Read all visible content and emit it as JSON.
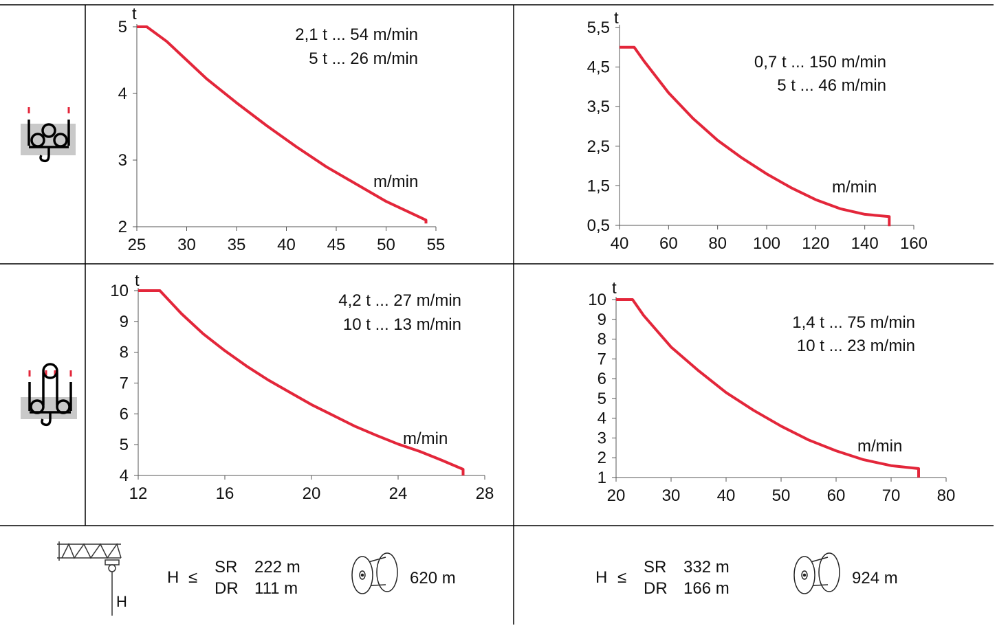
{
  "colors": {
    "curve": "#e3263a",
    "axis": "#555555",
    "line": "#000000",
    "icon_bg": "#c9c9c9"
  },
  "row_icons": [
    {
      "name": "single-reeving-hook-icon"
    },
    {
      "name": "double-reeving-hook-icon"
    }
  ],
  "chart_data": [
    {
      "type": "line",
      "ylabel": "t",
      "xlabel": "m/min",
      "xlim": [
        25,
        55
      ],
      "ylim": [
        2,
        5
      ],
      "x_ticks": [
        "25",
        "30",
        "35",
        "40",
        "45",
        "50",
        "55"
      ],
      "y_ticks": [
        "2",
        "3",
        "4",
        "5"
      ],
      "annotations": [
        "2,1 t ... 54 m/min",
        "5 t ... 26 m/min"
      ],
      "series": [
        {
          "x": [
            25,
            26,
            28,
            30,
            32,
            35,
            38,
            41,
            44,
            47,
            50,
            52,
            54,
            54
          ],
          "y": [
            5.0,
            5.0,
            4.78,
            4.5,
            4.22,
            3.86,
            3.52,
            3.2,
            2.9,
            2.64,
            2.38,
            2.24,
            2.1,
            2.05
          ]
        }
      ]
    },
    {
      "type": "line",
      "ylabel": "t",
      "xlabel": "m/min",
      "xlim": [
        40,
        160
      ],
      "ylim": [
        0.5,
        5.5
      ],
      "x_ticks": [
        "40",
        "60",
        "80",
        "100",
        "120",
        "140",
        "160"
      ],
      "y_ticks": [
        "0,5",
        "1,5",
        "2,5",
        "3,5",
        "4,5",
        "5,5"
      ],
      "annotations": [
        "0,7 t ... 150 m/min",
        "5 t ...   46 m/min"
      ],
      "series": [
        {
          "x": [
            40,
            46,
            50,
            60,
            70,
            80,
            90,
            100,
            110,
            120,
            130,
            140,
            150,
            150
          ],
          "y": [
            5.0,
            5.0,
            4.65,
            3.85,
            3.2,
            2.65,
            2.2,
            1.8,
            1.45,
            1.15,
            0.92,
            0.78,
            0.72,
            0.48
          ]
        }
      ]
    },
    {
      "type": "line",
      "ylabel": "t",
      "xlabel": "m/min",
      "xlim": [
        12,
        28
      ],
      "ylim": [
        4,
        10
      ],
      "x_ticks": [
        "12",
        "16",
        "20",
        "24",
        "28"
      ],
      "y_ticks": [
        "4",
        "5",
        "6",
        "7",
        "8",
        "9",
        "10"
      ],
      "annotations": [
        "4,2 t ... 27 m/min",
        "10 t ... 13 m/min"
      ],
      "series": [
        {
          "x": [
            12,
            13,
            14,
            15,
            16,
            17,
            18,
            19,
            20,
            21,
            22,
            23,
            24,
            25,
            26,
            27,
            27
          ],
          "y": [
            10,
            10,
            9.25,
            8.6,
            8.05,
            7.55,
            7.1,
            6.7,
            6.3,
            5.95,
            5.6,
            5.3,
            5.02,
            4.78,
            4.5,
            4.2,
            4.0
          ]
        }
      ]
    },
    {
      "type": "line",
      "ylabel": "t",
      "xlabel": "m/min",
      "xlim": [
        20,
        80
      ],
      "ylim": [
        1,
        10
      ],
      "x_ticks": [
        "20",
        "30",
        "40",
        "50",
        "60",
        "70",
        "80"
      ],
      "y_ticks": [
        "1",
        "2",
        "3",
        "4",
        "5",
        "6",
        "7",
        "8",
        "9",
        "10"
      ],
      "annotations": [
        "1,4 t ... 75 m/min",
        "10 t ... 23 m/min"
      ],
      "series": [
        {
          "x": [
            20,
            23,
            25,
            30,
            35,
            40,
            45,
            50,
            55,
            60,
            65,
            70,
            75,
            75
          ],
          "y": [
            10,
            10,
            9.2,
            7.6,
            6.4,
            5.3,
            4.4,
            3.6,
            2.9,
            2.35,
            1.9,
            1.6,
            1.45,
            1.0
          ]
        }
      ]
    }
  ],
  "footer": {
    "left": {
      "h_label": "H",
      "le": "≤",
      "sr_label": "SR",
      "sr_value": "222 m",
      "dr_label": "DR",
      "dr_value": "111 m",
      "drum_length": "620 m"
    },
    "right": {
      "h_label": "H",
      "le": "≤",
      "sr_label": "SR",
      "sr_value": "332 m",
      "dr_label": "DR",
      "dr_value": "166 m",
      "drum_length": "924 m"
    },
    "crane_height_label": "H"
  }
}
